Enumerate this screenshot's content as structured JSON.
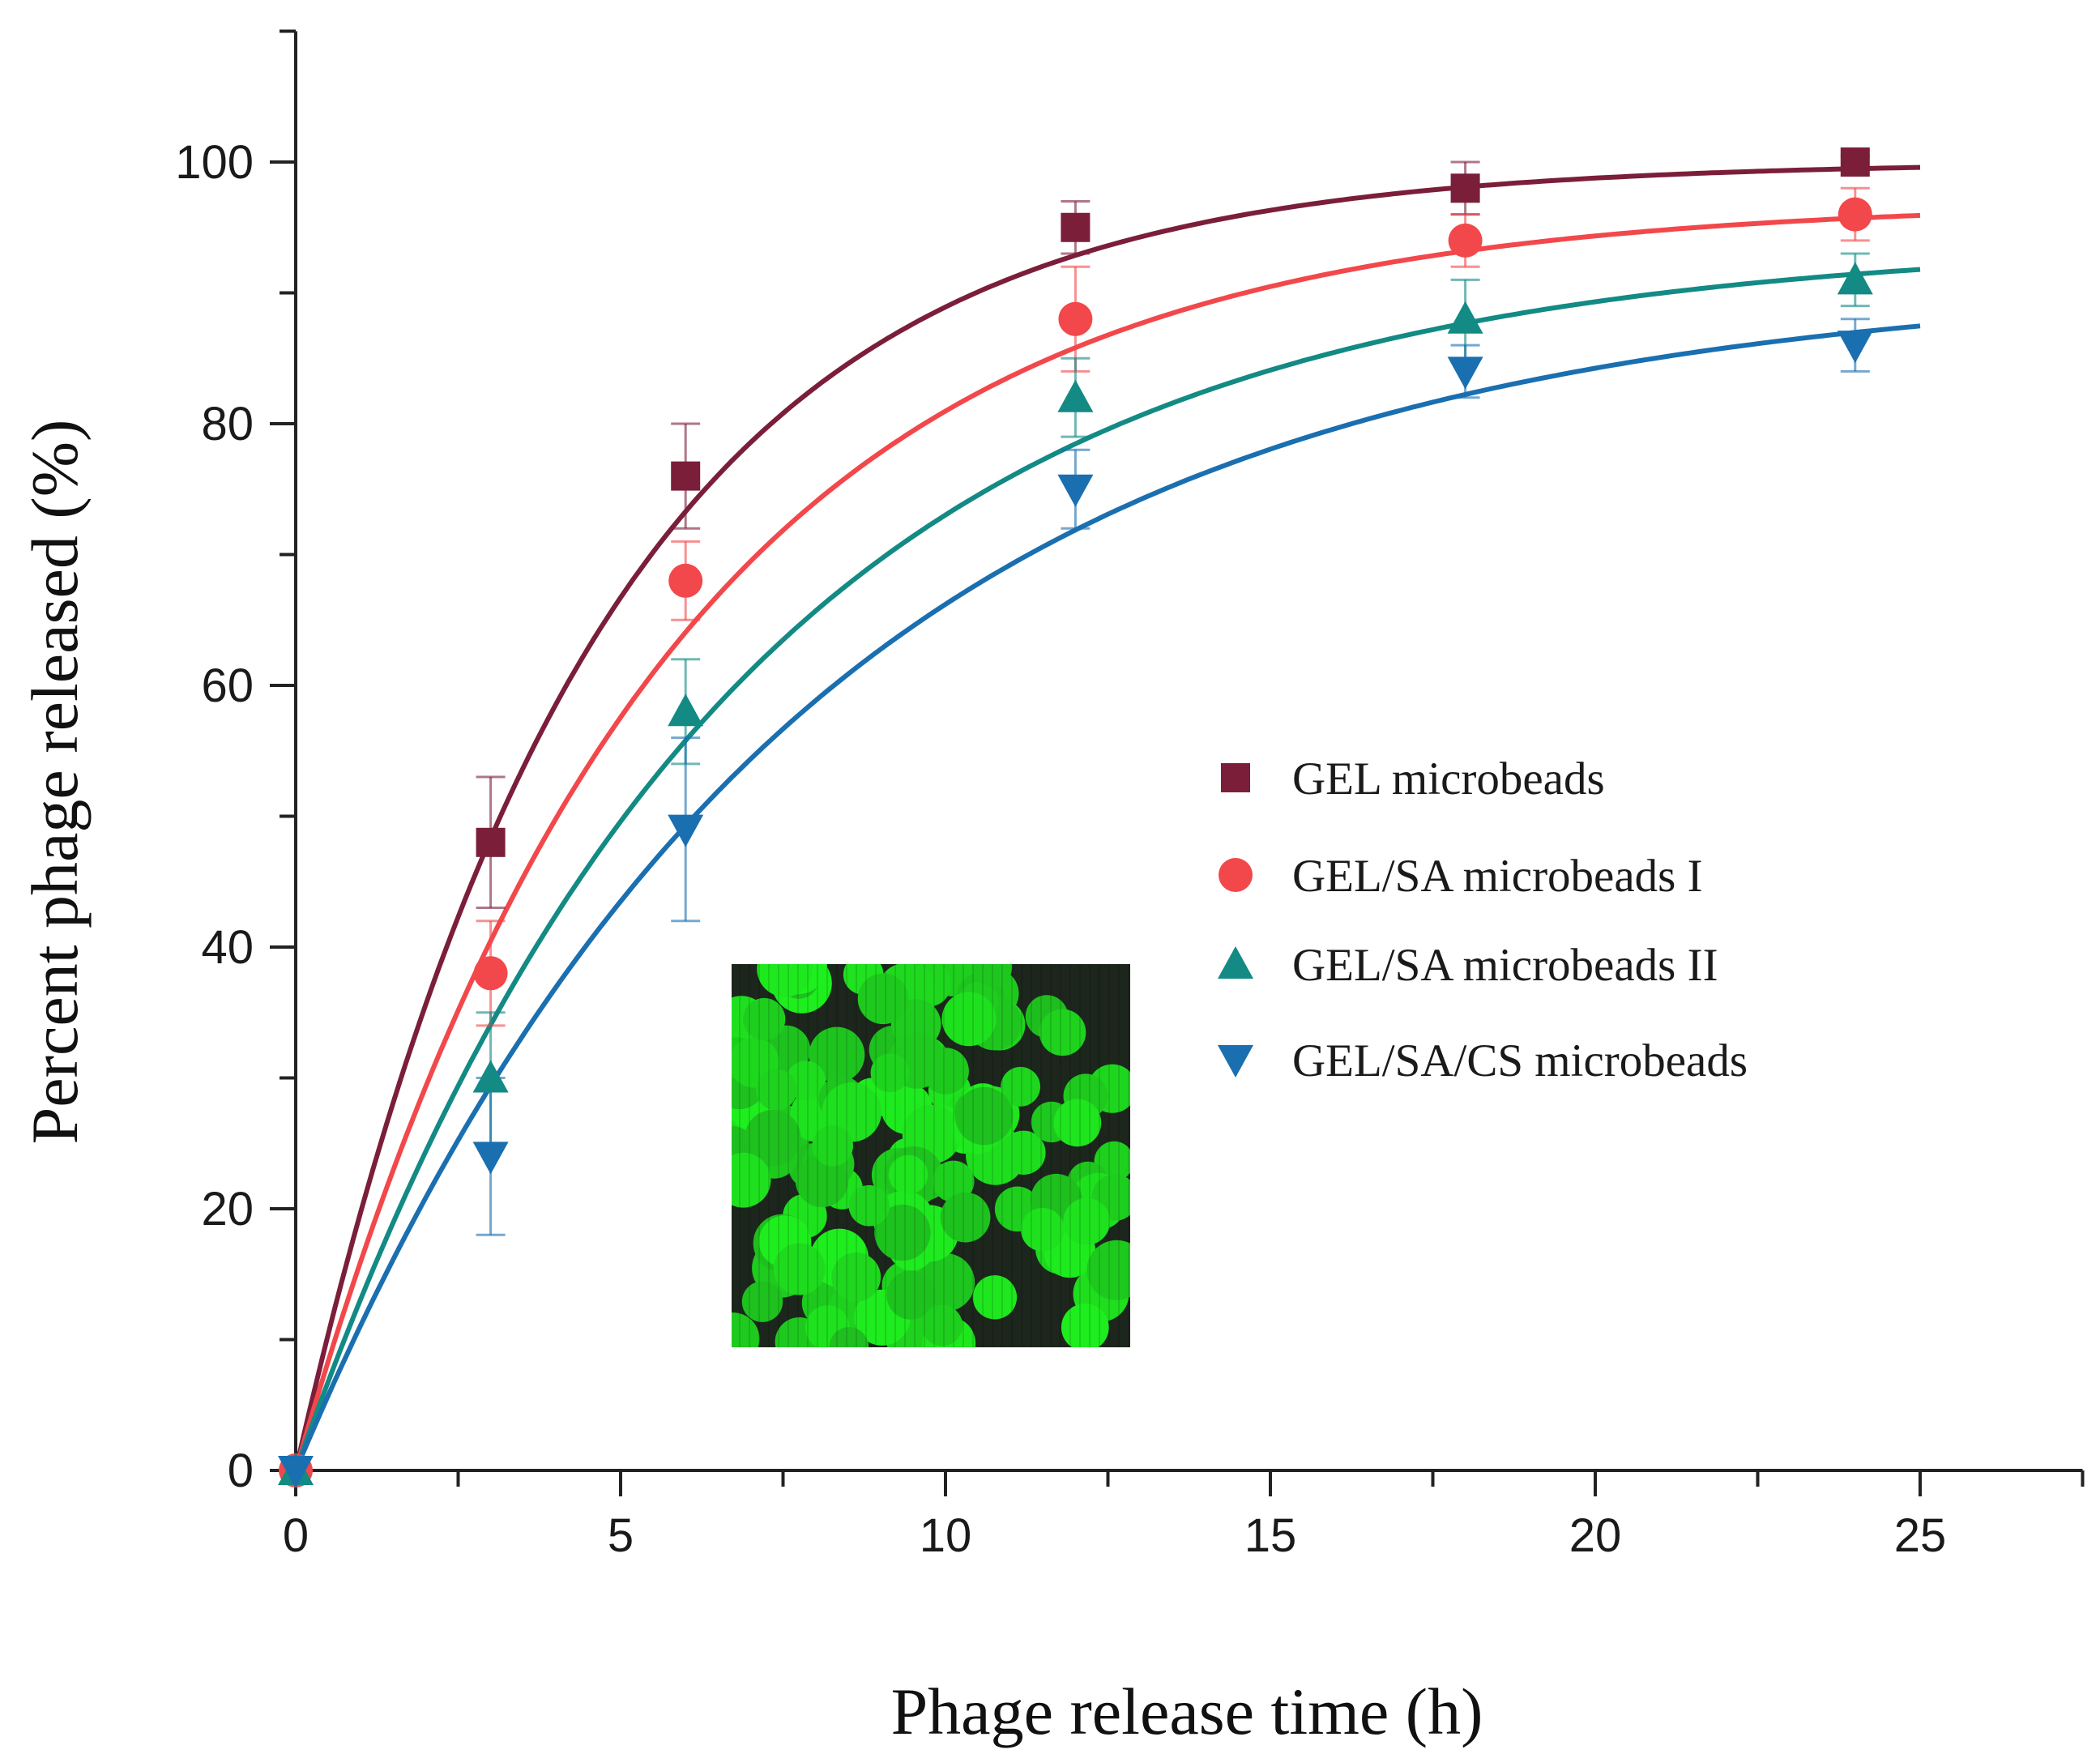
{
  "chart_data": {
    "type": "scatter",
    "xlabel": "Phage release time (h)",
    "ylabel": "Percent phage released (%)",
    "xlim": [
      0,
      27.5
    ],
    "ylim": [
      0,
      110
    ],
    "xticks": [
      0,
      5,
      10,
      15,
      20,
      25
    ],
    "yticks": [
      0,
      20,
      40,
      60,
      80,
      100
    ],
    "grid": false,
    "legend_position": "center-right",
    "x": [
      0,
      3,
      6,
      12,
      18,
      24
    ],
    "series": [
      {
        "name": "GEL microbeads",
        "marker": "square",
        "color": "#7b1e3a",
        "values": [
          0,
          48,
          76,
          95,
          98,
          100
        ],
        "errors": [
          0,
          5,
          4,
          2,
          2,
          0.5
        ],
        "fit": {
          "ymax": 100,
          "k": 0.22
        }
      },
      {
        "name": "GEL/SA microbeads I",
        "marker": "circle",
        "color": "#f2484b",
        "values": [
          0,
          38,
          68,
          88,
          94,
          96
        ],
        "errors": [
          0,
          4,
          3,
          4,
          2,
          2
        ],
        "fit": {
          "ymax": 97,
          "k": 0.18
        }
      },
      {
        "name": "GEL/SA microbeads II",
        "marker": "triangle-up",
        "color": "#138a84",
        "values": [
          0,
          30,
          58,
          82,
          88,
          91
        ],
        "errors": [
          0,
          5,
          4,
          3,
          3,
          2
        ],
        "fit": {
          "ymax": 94,
          "k": 0.15
        }
      },
      {
        "name": "GEL/SA/CS microbeads",
        "marker": "triangle-down",
        "color": "#1a6fb0",
        "values": [
          0,
          24,
          49,
          75,
          84,
          86
        ],
        "errors": [
          0,
          6,
          7,
          3,
          2,
          2
        ],
        "fit": {
          "ymax": 91,
          "k": 0.13
        }
      }
    ],
    "inset": {
      "type": "fluorescence-microscopy-image",
      "color": "#22dd22"
    }
  }
}
